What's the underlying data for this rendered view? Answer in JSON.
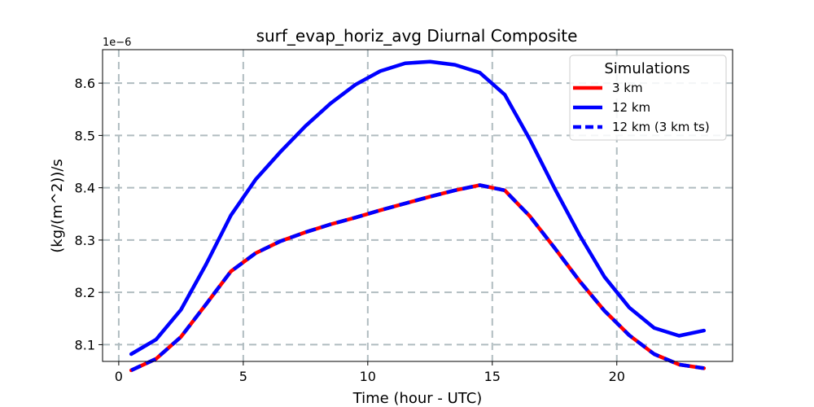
{
  "chart_data": {
    "type": "line",
    "title": "surf_evap_horiz_avg Diurnal Composite",
    "xlabel": "Time (hour - UTC)",
    "ylabel": "(kg/(m^2))/s",
    "y_offset_label": "1e−6",
    "xlim": [
      -0.65,
      24.65
    ],
    "ylim": [
      8.068,
      8.664
    ],
    "xticks": [
      0,
      5,
      10,
      15,
      20
    ],
    "xtick_labels": [
      "0",
      "5",
      "10",
      "15",
      "20"
    ],
    "yticks": [
      8.1,
      8.2,
      8.3,
      8.4,
      8.5,
      8.6
    ],
    "ytick_labels": [
      "8.1",
      "8.2",
      "8.3",
      "8.4",
      "8.5",
      "8.6"
    ],
    "grid": true,
    "legend": {
      "title": "Simulations",
      "location": "upper right"
    },
    "x": [
      0.5,
      1.5,
      2.5,
      3.5,
      4.5,
      5.5,
      6.5,
      7.5,
      8.5,
      9.5,
      10.5,
      11.5,
      12.5,
      13.5,
      14.5,
      15.5,
      16.5,
      17.5,
      18.5,
      19.5,
      20.5,
      21.5,
      22.5,
      23.5
    ],
    "series": [
      {
        "name": "3 km",
        "color": "#ff0000",
        "style": "solid",
        "values": [
          8.051,
          8.073,
          8.115,
          8.177,
          8.24,
          8.275,
          8.298,
          8.315,
          8.33,
          8.343,
          8.357,
          8.37,
          8.383,
          8.395,
          8.405,
          8.395,
          8.346,
          8.285,
          8.222,
          8.165,
          8.118,
          8.082,
          8.062,
          8.055
        ]
      },
      {
        "name": "12 km",
        "color": "#0000ff",
        "style": "solid",
        "values": [
          8.082,
          8.11,
          8.167,
          8.253,
          8.347,
          8.416,
          8.469,
          8.518,
          8.561,
          8.597,
          8.623,
          8.638,
          8.641,
          8.635,
          8.62,
          8.578,
          8.493,
          8.399,
          8.31,
          8.23,
          8.171,
          8.132,
          8.117,
          8.127
        ]
      },
      {
        "name": "12 km (3 km ts)",
        "color": "#0000ff",
        "style": "dashed",
        "values": [
          8.051,
          8.073,
          8.115,
          8.177,
          8.24,
          8.275,
          8.298,
          8.315,
          8.33,
          8.343,
          8.357,
          8.37,
          8.383,
          8.395,
          8.405,
          8.395,
          8.346,
          8.285,
          8.222,
          8.165,
          8.118,
          8.082,
          8.062,
          8.055
        ]
      }
    ]
  }
}
